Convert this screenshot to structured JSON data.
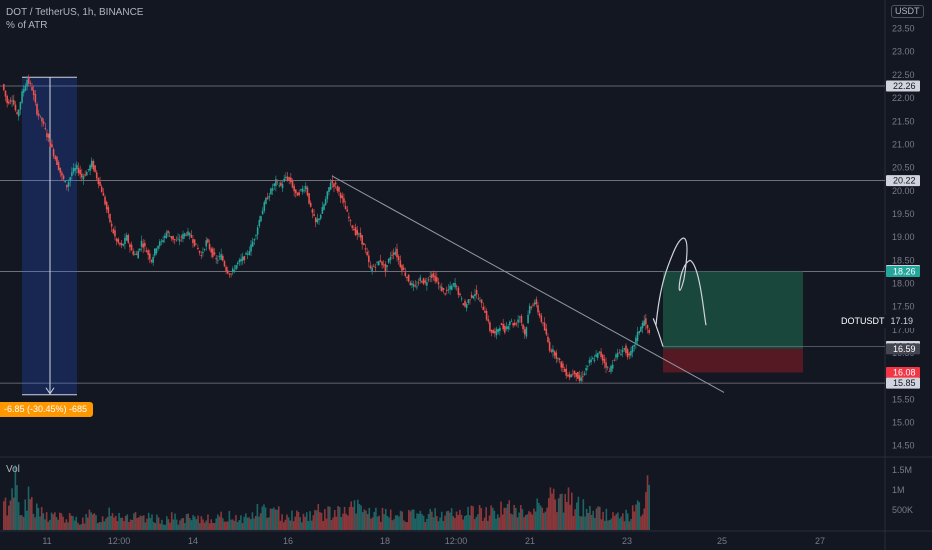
{
  "header": {
    "symbol_line": "DOT / TetherUS, 1h, BINANCE",
    "indicator_line": "% of ATR",
    "currency": "USDT"
  },
  "measure_label": "-6.85 (-30.45%) -685",
  "ticker": {
    "symbol": "DOTUSDT",
    "price": "17.19"
  },
  "volume_label": "Vol",
  "colors": {
    "up": "#26a69a",
    "down": "#ef5350",
    "background": "#131722",
    "grid": "#2a2e39",
    "measure": "#ff9800",
    "target_zone": "#1b4d3e",
    "stop_zone": "#5c1a23"
  },
  "chart_data": {
    "type": "candlestick",
    "price_axis": {
      "ticks": [
        "23.50",
        "23.00",
        "22.50",
        "22.00",
        "21.50",
        "21.00",
        "20.50",
        "20.00",
        "19.50",
        "19.00",
        "18.50",
        "18.00",
        "17.50",
        "17.00",
        "16.50",
        "16.00",
        "15.50",
        "15.00",
        "14.50"
      ],
      "range": [
        14.3,
        23.9
      ]
    },
    "volume_axis": {
      "ticks": [
        "1.5M",
        "1M",
        "500K"
      ],
      "range": [
        0,
        1700000
      ]
    },
    "time_axis": {
      "ticks": [
        "11",
        "12:00",
        "14",
        "16",
        "18",
        "12:00",
        "21",
        "23",
        "25",
        "27"
      ]
    },
    "horizontal_levels": [
      "22.26",
      "20.22",
      "18.26",
      "15.85"
    ],
    "price_labels": [
      {
        "value": "22.26",
        "kind": "level"
      },
      {
        "value": "20.22",
        "kind": "level"
      },
      {
        "value": "18.28",
        "kind": "level"
      },
      {
        "value": "18.26",
        "kind": "target"
      },
      {
        "value": "16.64",
        "kind": "level"
      },
      {
        "value": "16.59",
        "kind": "entry"
      },
      {
        "value": "16.08",
        "kind": "stop"
      },
      {
        "value": "15.85",
        "kind": "level"
      }
    ],
    "path": [
      22.3,
      21.9,
      22.0,
      21.6,
      22.1,
      22.4,
      22.2,
      21.7,
      21.5,
      21.2,
      20.9,
      20.6,
      20.3,
      20.1,
      20.4,
      20.5,
      20.3,
      20.4,
      20.6,
      20.3,
      20.0,
      19.6,
      19.2,
      18.9,
      18.8,
      19.0,
      18.7,
      18.6,
      18.9,
      18.7,
      18.5,
      18.8,
      18.9,
      19.1,
      19.0,
      18.9,
      19.0,
      19.1,
      19.0,
      18.8,
      18.6,
      18.9,
      18.7,
      18.5,
      18.6,
      18.3,
      18.2,
      18.4,
      18.5,
      18.6,
      18.8,
      19.1,
      19.5,
      19.8,
      20.0,
      20.2,
      20.1,
      20.3,
      20.2,
      19.9,
      20.0,
      20.1,
      19.6,
      19.3,
      19.5,
      19.8,
      20.2,
      20.1,
      19.9,
      19.6,
      19.3,
      19.1,
      19.0,
      18.7,
      18.3,
      18.4,
      18.5,
      18.3,
      18.6,
      18.7,
      18.4,
      18.2,
      18.0,
      17.9,
      18.1,
      18.0,
      18.2,
      18.1,
      17.9,
      17.8,
      17.9,
      18.0,
      17.7,
      17.5,
      17.7,
      17.8,
      17.6,
      17.4,
      17.0,
      16.9,
      17.1,
      17.0,
      17.2,
      17.1,
      17.3,
      16.9,
      17.5,
      17.6,
      17.3,
      17.0,
      16.6,
      16.5,
      16.3,
      16.1,
      16.0,
      16.1,
      15.9,
      16.1,
      16.3,
      16.4,
      16.5,
      16.3,
      16.1,
      16.4,
      16.5,
      16.6,
      16.4,
      16.7,
      17.0,
      17.2,
      16.9
    ],
    "volume": [
      650000,
      900000,
      1500000,
      700000,
      600000,
      850000,
      500000,
      450000,
      400000,
      380000,
      420000,
      350000,
      300000,
      330000,
      280000,
      260000,
      300000,
      400000,
      350000,
      320000,
      300000,
      600000,
      500000,
      420000,
      380000,
      360000,
      340000,
      300000,
      280000,
      320000,
      350000,
      290000,
      270000,
      300000,
      330000,
      280000,
      260000,
      310000,
      290000,
      270000,
      300000,
      350000,
      330000,
      310000,
      340000,
      380000,
      400000,
      360000,
      330000,
      350000,
      420000,
      500000,
      560000,
      520000,
      480000,
      450000,
      420000,
      460000,
      430000,
      400000,
      390000,
      420000,
      450000,
      500000,
      470000,
      440000,
      520000,
      480000,
      460000,
      500000,
      550000,
      600000,
      580000,
      520000,
      480000,
      450000,
      420000,
      400000,
      380000,
      420000,
      450000,
      430000,
      400000,
      380000,
      360000,
      400000,
      420000,
      450000,
      480000,
      460000,
      430000,
      410000,
      440000,
      470000,
      500000,
      520000,
      480000,
      460000,
      500000,
      550000,
      600000,
      650000,
      580000,
      520000,
      480000,
      450000,
      520000,
      600000,
      700000,
      800000,
      1000000,
      900000,
      800000,
      700000,
      850000,
      750000,
      650000,
      600000,
      550000,
      500000,
      480000,
      450000,
      420000,
      400000,
      380000,
      420000,
      450000,
      500000,
      550000,
      600000,
      1100000
    ]
  }
}
